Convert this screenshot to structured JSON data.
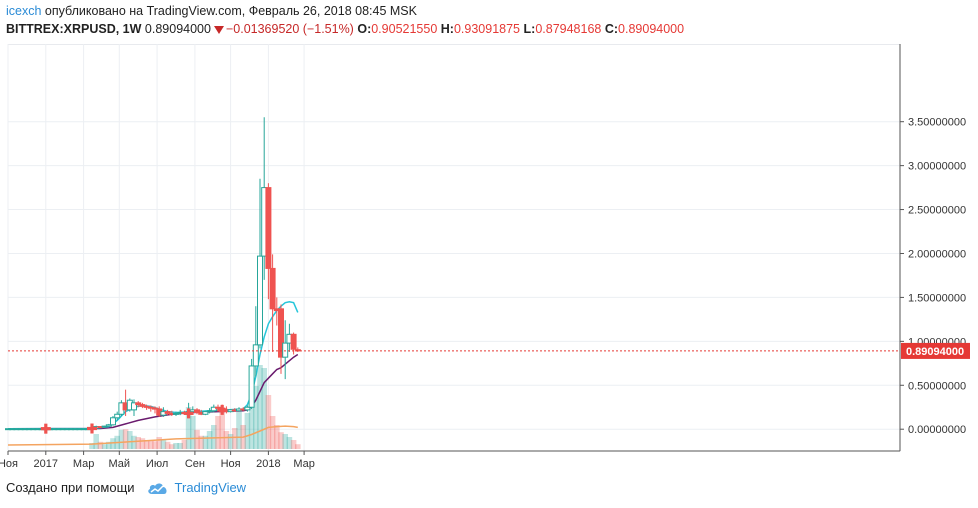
{
  "header": {
    "user": "icexch",
    "published": "опубликовано на TradingView.com, Февраль 26, 2018 08:45 MSK",
    "symbol": "BITTREX:XRPUSD, 1W",
    "last": "0.89094000",
    "change": "−0.01369520 (−1.51%)",
    "o_label": "O:",
    "o_val": "0.90521550",
    "h_label": "H:",
    "h_val": "0.93091875",
    "l_label": "L:",
    "l_val": "0.87948168",
    "c_label": "C:",
    "c_val": "0.89094000"
  },
  "footer": {
    "created_with": "Создано при помощи",
    "brand": "TradingView"
  },
  "colors": {
    "up": "#26a69a",
    "down": "#ef5350",
    "ma_fast": "#26c6da",
    "ma_mid": "#6a1b6e",
    "ma_slow": "#f4a460",
    "price_line": "#e53935"
  },
  "icons": {
    "signal": "cross-marker-icon",
    "logo": "tradingview-cloud-icon"
  },
  "chart_data": {
    "type": "candlestick",
    "title": "",
    "ylim": [
      -0.2,
      3.75
    ],
    "price_label": "0.89094000",
    "y_ticks": [
      "3.50000000",
      "3.00000000",
      "2.50000000",
      "2.00000000",
      "1.50000000",
      "1.00000000",
      "0.50000000",
      "0.00000000"
    ],
    "y_tick_values": [
      3.5,
      3.0,
      2.5,
      2.0,
      1.5,
      1.0,
      0.5,
      0.0
    ],
    "x_ticks": [
      {
        "label": "Ноя",
        "w": 0
      },
      {
        "label": "2017",
        "w": 9
      },
      {
        "label": "Мар",
        "w": 18
      },
      {
        "label": "Май",
        "w": 26.5
      },
      {
        "label": "Июл",
        "w": 35.5
      },
      {
        "label": "Сен",
        "w": 44.5
      },
      {
        "label": "Ноя",
        "w": 53
      },
      {
        "label": "2018",
        "w": 62
      },
      {
        "label": "Мар",
        "w": 70.5
      }
    ],
    "candles": [
      {
        "w": 0,
        "o": 0.006,
        "h": 0.007,
        "l": 0.005,
        "c": 0.006
      },
      {
        "w": 1,
        "o": 0.006,
        "h": 0.007,
        "l": 0.005,
        "c": 0.006
      },
      {
        "w": 2,
        "o": 0.006,
        "h": 0.007,
        "l": 0.005,
        "c": 0.006
      },
      {
        "w": 3,
        "o": 0.006,
        "h": 0.007,
        "l": 0.005,
        "c": 0.006
      },
      {
        "w": 4,
        "o": 0.006,
        "h": 0.007,
        "l": 0.005,
        "c": 0.006
      },
      {
        "w": 5,
        "o": 0.006,
        "h": 0.007,
        "l": 0.005,
        "c": 0.006
      },
      {
        "w": 6,
        "o": 0.006,
        "h": 0.007,
        "l": 0.005,
        "c": 0.006
      },
      {
        "w": 7,
        "o": 0.006,
        "h": 0.007,
        "l": 0.005,
        "c": 0.006
      },
      {
        "w": 8,
        "o": 0.006,
        "h": 0.007,
        "l": 0.005,
        "c": 0.006
      },
      {
        "w": 9,
        "o": 0.006,
        "h": 0.008,
        "l": 0.005,
        "c": 0.006
      },
      {
        "w": 10,
        "o": 0.006,
        "h": 0.008,
        "l": 0.005,
        "c": 0.006
      },
      {
        "w": 11,
        "o": 0.006,
        "h": 0.008,
        "l": 0.005,
        "c": 0.006
      },
      {
        "w": 12,
        "o": 0.006,
        "h": 0.008,
        "l": 0.005,
        "c": 0.006
      },
      {
        "w": 13,
        "o": 0.006,
        "h": 0.008,
        "l": 0.005,
        "c": 0.006
      },
      {
        "w": 14,
        "o": 0.006,
        "h": 0.008,
        "l": 0.005,
        "c": 0.006
      },
      {
        "w": 15,
        "o": 0.006,
        "h": 0.008,
        "l": 0.005,
        "c": 0.006
      },
      {
        "w": 16,
        "o": 0.006,
        "h": 0.008,
        "l": 0.005,
        "c": 0.006
      },
      {
        "w": 17,
        "o": 0.006,
        "h": 0.008,
        "l": 0.005,
        "c": 0.006
      },
      {
        "w": 18,
        "o": 0.006,
        "h": 0.008,
        "l": 0.005,
        "c": 0.006
      },
      {
        "w": 19,
        "o": 0.006,
        "h": 0.008,
        "l": 0.005,
        "c": 0.006
      },
      {
        "w": 20,
        "o": 0.006,
        "h": 0.015,
        "l": 0.005,
        "c": 0.01
      },
      {
        "w": 21,
        "o": 0.01,
        "h": 0.04,
        "l": 0.005,
        "c": 0.03
      },
      {
        "w": 22,
        "o": 0.03,
        "h": 0.035,
        "l": 0.02,
        "c": 0.025
      },
      {
        "w": 23,
        "o": 0.025,
        "h": 0.04,
        "l": 0.02,
        "c": 0.035
      },
      {
        "w": 24,
        "o": 0.035,
        "h": 0.06,
        "l": 0.03,
        "c": 0.05
      },
      {
        "w": 25,
        "o": 0.05,
        "h": 0.15,
        "l": 0.04,
        "c": 0.13
      },
      {
        "w": 26,
        "o": 0.13,
        "h": 0.2,
        "l": 0.1,
        "c": 0.17
      },
      {
        "w": 27,
        "o": 0.17,
        "h": 0.33,
        "l": 0.15,
        "c": 0.3
      },
      {
        "w": 28,
        "o": 0.3,
        "h": 0.45,
        "l": 0.15,
        "c": 0.22
      },
      {
        "w": 29,
        "o": 0.22,
        "h": 0.35,
        "l": 0.2,
        "c": 0.33
      },
      {
        "w": 30,
        "o": 0.22,
        "h": 0.34,
        "l": 0.15,
        "c": 0.3
      },
      {
        "w": 31,
        "o": 0.3,
        "h": 0.32,
        "l": 0.25,
        "c": 0.28
      },
      {
        "w": 32,
        "o": 0.28,
        "h": 0.3,
        "l": 0.24,
        "c": 0.26
      },
      {
        "w": 33,
        "o": 0.26,
        "h": 0.28,
        "l": 0.22,
        "c": 0.25
      },
      {
        "w": 34,
        "o": 0.25,
        "h": 0.27,
        "l": 0.2,
        "c": 0.24
      },
      {
        "w": 35,
        "o": 0.24,
        "h": 0.26,
        "l": 0.18,
        "c": 0.23
      },
      {
        "w": 36,
        "o": 0.23,
        "h": 0.26,
        "l": 0.14,
        "c": 0.16
      },
      {
        "w": 37,
        "o": 0.16,
        "h": 0.25,
        "l": 0.14,
        "c": 0.2
      },
      {
        "w": 38,
        "o": 0.2,
        "h": 0.22,
        "l": 0.16,
        "c": 0.18
      },
      {
        "w": 39,
        "o": 0.18,
        "h": 0.21,
        "l": 0.15,
        "c": 0.17
      },
      {
        "w": 40,
        "o": 0.17,
        "h": 0.2,
        "l": 0.15,
        "c": 0.18
      },
      {
        "w": 41,
        "o": 0.18,
        "h": 0.22,
        "l": 0.16,
        "c": 0.19
      },
      {
        "w": 42,
        "o": 0.19,
        "h": 0.21,
        "l": 0.17,
        "c": 0.18
      },
      {
        "w": 43,
        "o": 0.18,
        "h": 0.3,
        "l": 0.16,
        "c": 0.2
      },
      {
        "w": 44,
        "o": 0.2,
        "h": 0.26,
        "l": 0.18,
        "c": 0.22
      },
      {
        "w": 45,
        "o": 0.22,
        "h": 0.24,
        "l": 0.17,
        "c": 0.19
      },
      {
        "w": 46,
        "o": 0.19,
        "h": 0.22,
        "l": 0.16,
        "c": 0.17
      },
      {
        "w": 47,
        "o": 0.17,
        "h": 0.21,
        "l": 0.16,
        "c": 0.2
      },
      {
        "w": 48,
        "o": 0.2,
        "h": 0.24,
        "l": 0.18,
        "c": 0.21
      },
      {
        "w": 49,
        "o": 0.21,
        "h": 0.28,
        "l": 0.19,
        "c": 0.25
      },
      {
        "w": 50,
        "o": 0.25,
        "h": 0.28,
        "l": 0.22,
        "c": 0.24
      },
      {
        "w": 51,
        "o": 0.24,
        "h": 0.28,
        "l": 0.19,
        "c": 0.2
      },
      {
        "w": 52,
        "o": 0.22,
        "h": 0.26,
        "l": 0.18,
        "c": 0.2
      },
      {
        "w": 53,
        "o": 0.2,
        "h": 0.23,
        "l": 0.19,
        "c": 0.22
      },
      {
        "w": 54,
        "o": 0.22,
        "h": 0.24,
        "l": 0.2,
        "c": 0.21
      },
      {
        "w": 55,
        "o": 0.21,
        "h": 0.25,
        "l": 0.2,
        "c": 0.23
      },
      {
        "w": 56,
        "o": 0.23,
        "h": 0.25,
        "l": 0.21,
        "c": 0.22
      },
      {
        "w": 57,
        "o": 0.22,
        "h": 0.27,
        "l": 0.2,
        "c": 0.25
      },
      {
        "w": 58,
        "o": 0.25,
        "h": 0.8,
        "l": 0.23,
        "c": 0.72
      },
      {
        "w": 59,
        "o": 0.72,
        "h": 1.4,
        "l": 0.6,
        "c": 0.96
      },
      {
        "w": 60,
        "o": 0.96,
        "h": 2.85,
        "l": 0.92,
        "c": 1.97
      },
      {
        "w": 61,
        "o": 1.97,
        "h": 3.55,
        "l": 1.7,
        "c": 2.75
      },
      {
        "w": 62,
        "o": 2.75,
        "h": 2.8,
        "l": 1.48,
        "c": 1.83
      },
      {
        "w": 63,
        "o": 1.83,
        "h": 1.99,
        "l": 0.88,
        "c": 1.37
      },
      {
        "w": 64,
        "o": 1.37,
        "h": 1.5,
        "l": 1.18,
        "c": 1.35
      },
      {
        "w": 65,
        "o": 1.37,
        "h": 1.42,
        "l": 0.63,
        "c": 0.82
      },
      {
        "w": 66,
        "o": 0.82,
        "h": 1.24,
        "l": 0.57,
        "c": 0.98
      },
      {
        "w": 67,
        "o": 0.98,
        "h": 1.2,
        "l": 0.88,
        "c": 1.08
      },
      {
        "w": 68,
        "o": 1.08,
        "h": 1.1,
        "l": 0.85,
        "c": 0.91
      },
      {
        "w": 69,
        "o": 0.905,
        "h": 0.931,
        "l": 0.879,
        "c": 0.891
      }
    ],
    "volume": [
      {
        "w": 20,
        "v": 0.1
      },
      {
        "w": 21,
        "v": 0.25
      },
      {
        "w": 22,
        "v": 0.12
      },
      {
        "w": 23,
        "v": 0.08
      },
      {
        "w": 24,
        "v": 0.12
      },
      {
        "w": 25,
        "v": 0.18
      },
      {
        "w": 26,
        "v": 0.22
      },
      {
        "w": 27,
        "v": 0.32
      },
      {
        "w": 28,
        "v": 0.33
      },
      {
        "w": 29,
        "v": 0.3
      },
      {
        "w": 30,
        "v": 0.22
      },
      {
        "w": 31,
        "v": 0.2
      },
      {
        "w": 32,
        "v": 0.18
      },
      {
        "w": 33,
        "v": 0.15
      },
      {
        "w": 34,
        "v": 0.14
      },
      {
        "w": 35,
        "v": 0.13
      },
      {
        "w": 36,
        "v": 0.2
      },
      {
        "w": 37,
        "v": 0.15
      },
      {
        "w": 38,
        "v": 0.12
      },
      {
        "w": 39,
        "v": 0.08
      },
      {
        "w": 40,
        "v": 0.1
      },
      {
        "w": 41,
        "v": 0.1
      },
      {
        "w": 42,
        "v": 0.15
      },
      {
        "w": 43,
        "v": 0.7
      },
      {
        "w": 44,
        "v": 0.55
      },
      {
        "w": 45,
        "v": 0.32
      },
      {
        "w": 46,
        "v": 0.22
      },
      {
        "w": 47,
        "v": 0.22
      },
      {
        "w": 48,
        "v": 0.3
      },
      {
        "w": 49,
        "v": 0.4
      },
      {
        "w": 50,
        "v": 0.55
      },
      {
        "w": 51,
        "v": 0.65
      },
      {
        "w": 52,
        "v": 0.3
      },
      {
        "w": 53,
        "v": 0.25
      },
      {
        "w": 54,
        "v": 0.35
      },
      {
        "w": 55,
        "v": 0.65
      },
      {
        "w": 56,
        "v": 0.4
      },
      {
        "w": 57,
        "v": 0.6
      },
      {
        "w": 58,
        "v": 1.0
      },
      {
        "w": 59,
        "v": 1.05
      },
      {
        "w": 60,
        "v": 1.4
      },
      {
        "w": 61,
        "v": 1.35
      },
      {
        "w": 62,
        "v": 0.9
      },
      {
        "w": 63,
        "v": 0.55
      },
      {
        "w": 64,
        "v": 0.4
      },
      {
        "w": 65,
        "v": 0.28
      },
      {
        "w": 66,
        "v": 0.25
      },
      {
        "w": 67,
        "v": 0.2
      },
      {
        "w": 68,
        "v": 0.15
      },
      {
        "w": 69,
        "v": 0.08
      }
    ],
    "ma_fast": [
      {
        "w": 0,
        "v": 0.006
      },
      {
        "w": 20,
        "v": 0.008
      },
      {
        "w": 24,
        "v": 0.03
      },
      {
        "w": 26,
        "v": 0.1
      },
      {
        "w": 28,
        "v": 0.2
      },
      {
        "w": 30,
        "v": 0.25
      },
      {
        "w": 32,
        "v": 0.27
      },
      {
        "w": 34,
        "v": 0.26
      },
      {
        "w": 36,
        "v": 0.23
      },
      {
        "w": 38,
        "v": 0.2
      },
      {
        "w": 40,
        "v": 0.19
      },
      {
        "w": 44,
        "v": 0.2
      },
      {
        "w": 48,
        "v": 0.21
      },
      {
        "w": 52,
        "v": 0.22
      },
      {
        "w": 56,
        "v": 0.23
      },
      {
        "w": 57,
        "v": 0.28
      },
      {
        "w": 58,
        "v": 0.4
      },
      {
        "w": 59,
        "v": 0.6
      },
      {
        "w": 60,
        "v": 0.85
      },
      {
        "w": 61,
        "v": 1.05
      },
      {
        "w": 62,
        "v": 1.2
      },
      {
        "w": 63,
        "v": 1.28
      },
      {
        "w": 64,
        "v": 1.35
      },
      {
        "w": 65,
        "v": 1.4
      },
      {
        "w": 66,
        "v": 1.44
      },
      {
        "w": 67,
        "v": 1.45
      },
      {
        "w": 68,
        "v": 1.44
      },
      {
        "w": 69,
        "v": 1.33
      }
    ],
    "ma_mid": [
      {
        "w": 0,
        "v": 0.006
      },
      {
        "w": 22,
        "v": 0.008
      },
      {
        "w": 25,
        "v": 0.02
      },
      {
        "w": 28,
        "v": 0.06
      },
      {
        "w": 31,
        "v": 0.1
      },
      {
        "w": 35,
        "v": 0.14
      },
      {
        "w": 39,
        "v": 0.17
      },
      {
        "w": 44,
        "v": 0.19
      },
      {
        "w": 50,
        "v": 0.2
      },
      {
        "w": 56,
        "v": 0.21
      },
      {
        "w": 57,
        "v": 0.22
      },
      {
        "w": 58,
        "v": 0.26
      },
      {
        "w": 59,
        "v": 0.33
      },
      {
        "w": 60,
        "v": 0.43
      },
      {
        "w": 61,
        "v": 0.53
      },
      {
        "w": 62,
        "v": 0.58
      },
      {
        "w": 63,
        "v": 0.63
      },
      {
        "w": 64,
        "v": 0.68
      },
      {
        "w": 65,
        "v": 0.7
      },
      {
        "w": 66,
        "v": 0.74
      },
      {
        "w": 67,
        "v": 0.78
      },
      {
        "w": 68,
        "v": 0.82
      },
      {
        "w": 69,
        "v": 0.85
      }
    ],
    "ma_slow": [
      {
        "w": 0,
        "v": -0.18
      },
      {
        "w": 20,
        "v": -0.17
      },
      {
        "w": 30,
        "v": -0.14
      },
      {
        "w": 40,
        "v": -0.11
      },
      {
        "w": 48,
        "v": -0.1
      },
      {
        "w": 56,
        "v": -0.09
      },
      {
        "w": 58,
        "v": -0.06
      },
      {
        "w": 60,
        "v": -0.02
      },
      {
        "w": 62,
        "v": 0.02
      },
      {
        "w": 64,
        "v": 0.03
      },
      {
        "w": 66,
        "v": 0.035
      },
      {
        "w": 68,
        "v": 0.03
      },
      {
        "w": 69,
        "v": 0.02
      }
    ],
    "signals": [
      {
        "w": 9,
        "v": 0.006
      },
      {
        "w": 20,
        "v": 0.008
      },
      {
        "w": 43,
        "v": 0.18
      },
      {
        "w": 51,
        "v": 0.22
      }
    ]
  }
}
